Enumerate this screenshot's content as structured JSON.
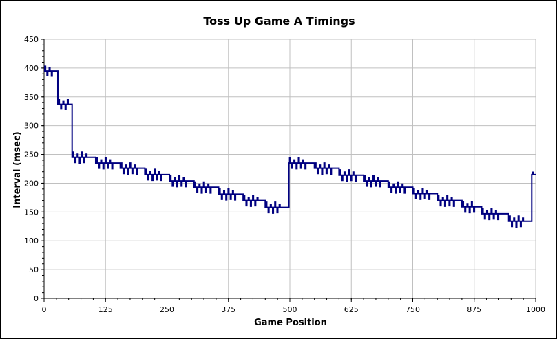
{
  "chart_data": {
    "type": "line",
    "title": "Toss Up Game A Timings",
    "xlabel": "Game Position",
    "ylabel": "Interval (msec)",
    "xlim": [
      0,
      1000
    ],
    "ylim": [
      0,
      450
    ],
    "x_ticks": [
      "0",
      "125",
      "250",
      "375",
      "500",
      "625",
      "750",
      "875",
      "1000"
    ],
    "y_ticks": [
      "0",
      "50",
      "100",
      "150",
      "200",
      "250",
      "300",
      "350",
      "400",
      "450"
    ],
    "grid": true,
    "legend": "none",
    "series": [
      {
        "color": "#000080",
        "segments": [
          {
            "x_start": 0,
            "x_end": 28,
            "base": 395,
            "spike_amp": 8
          },
          {
            "x_start": 28,
            "x_end": 57,
            "base": 337,
            "spike_amp": 8
          },
          {
            "x_start": 57,
            "x_end": 105,
            "base": 245,
            "spike_amp": 9
          },
          {
            "x_start": 105,
            "x_end": 155,
            "base": 235,
            "spike_amp": 9
          },
          {
            "x_start": 155,
            "x_end": 205,
            "base": 226,
            "spike_amp": 9
          },
          {
            "x_start": 205,
            "x_end": 255,
            "base": 215,
            "spike_amp": 9
          },
          {
            "x_start": 255,
            "x_end": 305,
            "base": 204,
            "spike_amp": 9
          },
          {
            "x_start": 305,
            "x_end": 355,
            "base": 193,
            "spike_amp": 9
          },
          {
            "x_start": 355,
            "x_end": 405,
            "base": 181,
            "spike_amp": 9
          },
          {
            "x_start": 405,
            "x_end": 450,
            "base": 170,
            "spike_amp": 9
          },
          {
            "x_start": 450,
            "x_end": 498,
            "base": 158,
            "spike_amp": 9
          },
          {
            "x_start": 498,
            "x_end": 550,
            "base": 235,
            "spike_amp": 9
          },
          {
            "x_start": 550,
            "x_end": 600,
            "base": 226,
            "spike_amp": 9
          },
          {
            "x_start": 600,
            "x_end": 650,
            "base": 214,
            "spike_amp": 9
          },
          {
            "x_start": 650,
            "x_end": 700,
            "base": 204,
            "spike_amp": 9
          },
          {
            "x_start": 700,
            "x_end": 750,
            "base": 193,
            "spike_amp": 9
          },
          {
            "x_start": 750,
            "x_end": 800,
            "base": 182,
            "spike_amp": 9
          },
          {
            "x_start": 800,
            "x_end": 850,
            "base": 170,
            "spike_amp": 9
          },
          {
            "x_start": 850,
            "x_end": 890,
            "base": 159,
            "spike_amp": 9
          },
          {
            "x_start": 890,
            "x_end": 945,
            "base": 147,
            "spike_amp": 9
          },
          {
            "x_start": 945,
            "x_end": 992,
            "base": 134,
            "spike_amp": 9
          },
          {
            "x_start": 992,
            "x_end": 1000,
            "base": 215,
            "spike_amp": 4
          }
        ]
      }
    ]
  }
}
